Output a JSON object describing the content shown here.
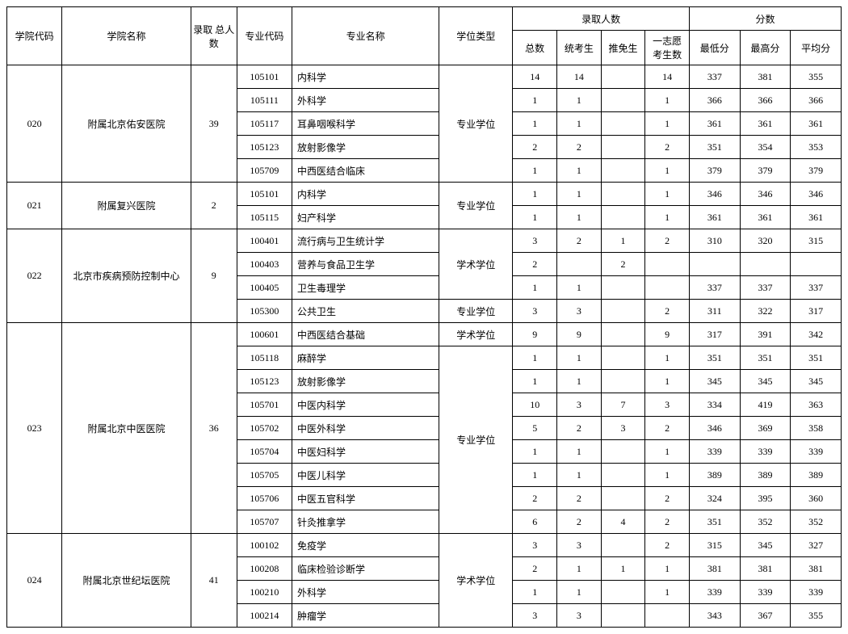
{
  "header": {
    "college_code": "学院代码",
    "college_name": "学院名称",
    "total_admitted": "录取\n总人数",
    "major_code": "专业代码",
    "major_name": "专业名称",
    "degree_type": "学位类型",
    "admitted_group": "录取人数",
    "score_group": "分数",
    "cnt_total": "总数",
    "cnt_exam": "统考生",
    "cnt_rec": "推免生",
    "cnt_first": "一志愿\n考生数",
    "score_min": "最低分",
    "score_max": "最高分",
    "score_avg": "平均分"
  },
  "degree_labels": {
    "pro": "专业学位",
    "aca": "学术学位"
  },
  "colleges": [
    {
      "code": "020",
      "name": "附属北京佑安医院",
      "total": "39",
      "groups": [
        {
          "degree": "pro",
          "rows": [
            {
              "mcode": "105101",
              "mname": "内科学",
              "t": "14",
              "e": "14",
              "r": "",
              "f": "14",
              "min": "337",
              "max": "381",
              "avg": "355"
            },
            {
              "mcode": "105111",
              "mname": "外科学",
              "t": "1",
              "e": "1",
              "r": "",
              "f": "1",
              "min": "366",
              "max": "366",
              "avg": "366"
            },
            {
              "mcode": "105117",
              "mname": "耳鼻咽喉科学",
              "t": "1",
              "e": "1",
              "r": "",
              "f": "1",
              "min": "361",
              "max": "361",
              "avg": "361"
            },
            {
              "mcode": "105123",
              "mname": "放射影像学",
              "t": "2",
              "e": "2",
              "r": "",
              "f": "2",
              "min": "351",
              "max": "354",
              "avg": "353"
            },
            {
              "mcode": "105709",
              "mname": "中西医结合临床",
              "t": "1",
              "e": "1",
              "r": "",
              "f": "1",
              "min": "379",
              "max": "379",
              "avg": "379"
            }
          ]
        }
      ]
    },
    {
      "code": "021",
      "name": "附属复兴医院",
      "total": "2",
      "groups": [
        {
          "degree": "pro",
          "rows": [
            {
              "mcode": "105101",
              "mname": "内科学",
              "t": "1",
              "e": "1",
              "r": "",
              "f": "1",
              "min": "346",
              "max": "346",
              "avg": "346"
            },
            {
              "mcode": "105115",
              "mname": "妇产科学",
              "t": "1",
              "e": "1",
              "r": "",
              "f": "1",
              "min": "361",
              "max": "361",
              "avg": "361"
            }
          ]
        }
      ]
    },
    {
      "code": "022",
      "name": "北京市疾病预防控制中心",
      "total": "9",
      "groups": [
        {
          "degree": "aca",
          "rows": [
            {
              "mcode": "100401",
              "mname": "流行病与卫生统计学",
              "t": "3",
              "e": "2",
              "r": "1",
              "f": "2",
              "min": "310",
              "max": "320",
              "avg": "315"
            },
            {
              "mcode": "100403",
              "mname": "营养与食品卫生学",
              "t": "2",
              "e": "",
              "r": "2",
              "f": "",
              "min": "",
              "max": "",
              "avg": ""
            },
            {
              "mcode": "100405",
              "mname": "卫生毒理学",
              "t": "1",
              "e": "1",
              "r": "",
              "f": "",
              "min": "337",
              "max": "337",
              "avg": "337"
            }
          ]
        },
        {
          "degree": "pro",
          "rows": [
            {
              "mcode": "105300",
              "mname": "公共卫生",
              "t": "3",
              "e": "3",
              "r": "",
              "f": "2",
              "min": "311",
              "max": "322",
              "avg": "317"
            }
          ]
        }
      ]
    },
    {
      "code": "023",
      "name": "附属北京中医医院",
      "total": "36",
      "groups": [
        {
          "degree": "aca",
          "rows": [
            {
              "mcode": "100601",
              "mname": "中西医结合基础",
              "t": "9",
              "e": "9",
              "r": "",
              "f": "9",
              "min": "317",
              "max": "391",
              "avg": "342"
            }
          ]
        },
        {
          "degree": "pro",
          "rows": [
            {
              "mcode": "105118",
              "mname": "麻醉学",
              "t": "1",
              "e": "1",
              "r": "",
              "f": "1",
              "min": "351",
              "max": "351",
              "avg": "351"
            },
            {
              "mcode": "105123",
              "mname": "放射影像学",
              "t": "1",
              "e": "1",
              "r": "",
              "f": "1",
              "min": "345",
              "max": "345",
              "avg": "345"
            },
            {
              "mcode": "105701",
              "mname": "中医内科学",
              "t": "10",
              "e": "3",
              "r": "7",
              "f": "3",
              "min": "334",
              "max": "419",
              "avg": "363"
            },
            {
              "mcode": "105702",
              "mname": "中医外科学",
              "t": "5",
              "e": "2",
              "r": "3",
              "f": "2",
              "min": "346",
              "max": "369",
              "avg": "358"
            },
            {
              "mcode": "105704",
              "mname": "中医妇科学",
              "t": "1",
              "e": "1",
              "r": "",
              "f": "1",
              "min": "339",
              "max": "339",
              "avg": "339"
            },
            {
              "mcode": "105705",
              "mname": "中医儿科学",
              "t": "1",
              "e": "1",
              "r": "",
              "f": "1",
              "min": "389",
              "max": "389",
              "avg": "389"
            },
            {
              "mcode": "105706",
              "mname": "中医五官科学",
              "t": "2",
              "e": "2",
              "r": "",
              "f": "2",
              "min": "324",
              "max": "395",
              "avg": "360"
            },
            {
              "mcode": "105707",
              "mname": "针灸推拿学",
              "t": "6",
              "e": "2",
              "r": "4",
              "f": "2",
              "min": "351",
              "max": "352",
              "avg": "352"
            }
          ]
        }
      ]
    },
    {
      "code": "024",
      "name": "附属北京世纪坛医院",
      "total": "41",
      "groups": [
        {
          "degree": "aca",
          "rows": [
            {
              "mcode": "100102",
              "mname": "免疫学",
              "t": "3",
              "e": "3",
              "r": "",
              "f": "2",
              "min": "315",
              "max": "345",
              "avg": "327"
            },
            {
              "mcode": "100208",
              "mname": "临床检验诊断学",
              "t": "2",
              "e": "1",
              "r": "1",
              "f": "1",
              "min": "381",
              "max": "381",
              "avg": "381"
            },
            {
              "mcode": "100210",
              "mname": "外科学",
              "t": "1",
              "e": "1",
              "r": "",
              "f": "1",
              "min": "339",
              "max": "339",
              "avg": "339"
            },
            {
              "mcode": "100214",
              "mname": "肿瘤学",
              "t": "3",
              "e": "3",
              "r": "",
              "f": "",
              "min": "343",
              "max": "367",
              "avg": "355"
            }
          ]
        }
      ]
    }
  ]
}
